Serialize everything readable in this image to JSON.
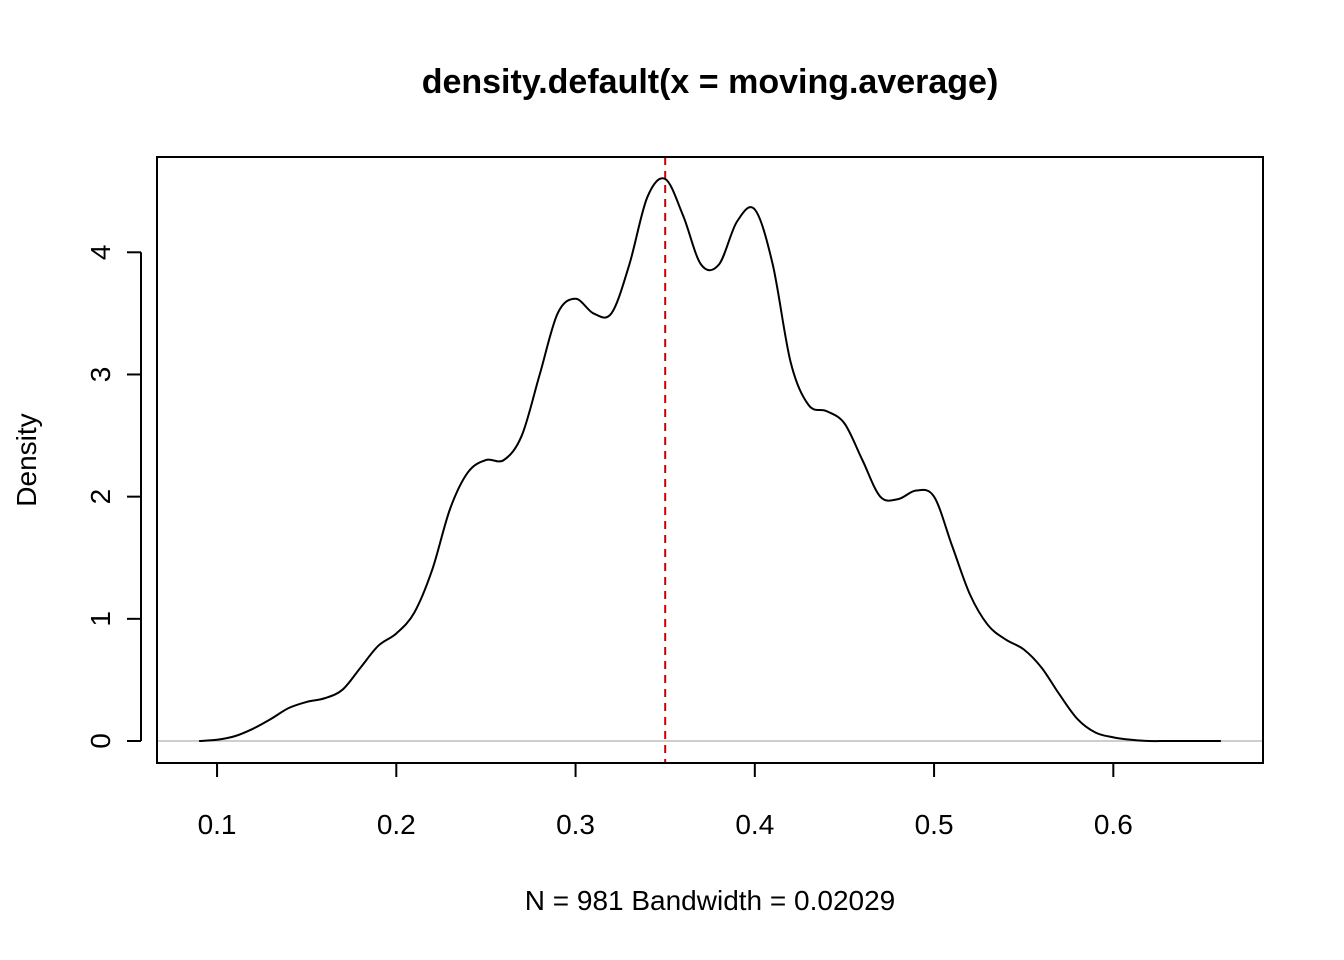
{
  "chart_data": {
    "type": "line",
    "title": "density.default(x = moving.average)",
    "xlabel": "N = 981   Bandwidth = 0.02029",
    "ylabel": "Density",
    "xlim": [
      0.0665,
      0.6835
    ],
    "ylim": [
      -0.18,
      4.78
    ],
    "x_ticks": [
      0.1,
      0.2,
      0.3,
      0.4,
      0.5,
      0.6
    ],
    "y_ticks": [
      0,
      1,
      2,
      3,
      4
    ],
    "x_tick_labels": [
      "0.1",
      "0.2",
      "0.3",
      "0.4",
      "0.5",
      "0.6"
    ],
    "y_tick_labels": [
      "0",
      "1",
      "2",
      "3",
      "4"
    ],
    "grid": false,
    "legend": "none",
    "series": [
      {
        "color": "#000000",
        "x": [
          0.09,
          0.1,
          0.11,
          0.12,
          0.13,
          0.14,
          0.15,
          0.16,
          0.17,
          0.18,
          0.19,
          0.2,
          0.21,
          0.22,
          0.23,
          0.24,
          0.25,
          0.26,
          0.27,
          0.28,
          0.29,
          0.3,
          0.31,
          0.32,
          0.33,
          0.34,
          0.35,
          0.36,
          0.37,
          0.38,
          0.39,
          0.4,
          0.41,
          0.42,
          0.43,
          0.44,
          0.45,
          0.46,
          0.47,
          0.48,
          0.49,
          0.5,
          0.51,
          0.52,
          0.53,
          0.54,
          0.55,
          0.56,
          0.57,
          0.58,
          0.59,
          0.6,
          0.61,
          0.62,
          0.63,
          0.64,
          0.65,
          0.66
        ],
        "y": [
          0.0,
          0.01,
          0.04,
          0.1,
          0.18,
          0.27,
          0.32,
          0.35,
          0.42,
          0.6,
          0.78,
          0.88,
          1.05,
          1.4,
          1.9,
          2.2,
          2.3,
          2.3,
          2.5,
          3.0,
          3.5,
          3.62,
          3.5,
          3.5,
          3.9,
          4.45,
          4.6,
          4.3,
          3.9,
          3.9,
          4.25,
          4.35,
          3.9,
          3.1,
          2.75,
          2.7,
          2.6,
          2.3,
          2.0,
          1.98,
          2.05,
          2.0,
          1.6,
          1.2,
          0.95,
          0.83,
          0.75,
          0.6,
          0.38,
          0.18,
          0.07,
          0.03,
          0.01,
          0.0,
          0.0,
          0.0,
          0.0,
          0.0
        ]
      }
    ],
    "reference_lines": [
      {
        "orientation": "vertical",
        "x": 0.35,
        "color": "#cc0000",
        "style": "dashed"
      },
      {
        "orientation": "horizontal",
        "y": 0,
        "color": "#bdbdbd",
        "style": "solid"
      }
    ]
  }
}
